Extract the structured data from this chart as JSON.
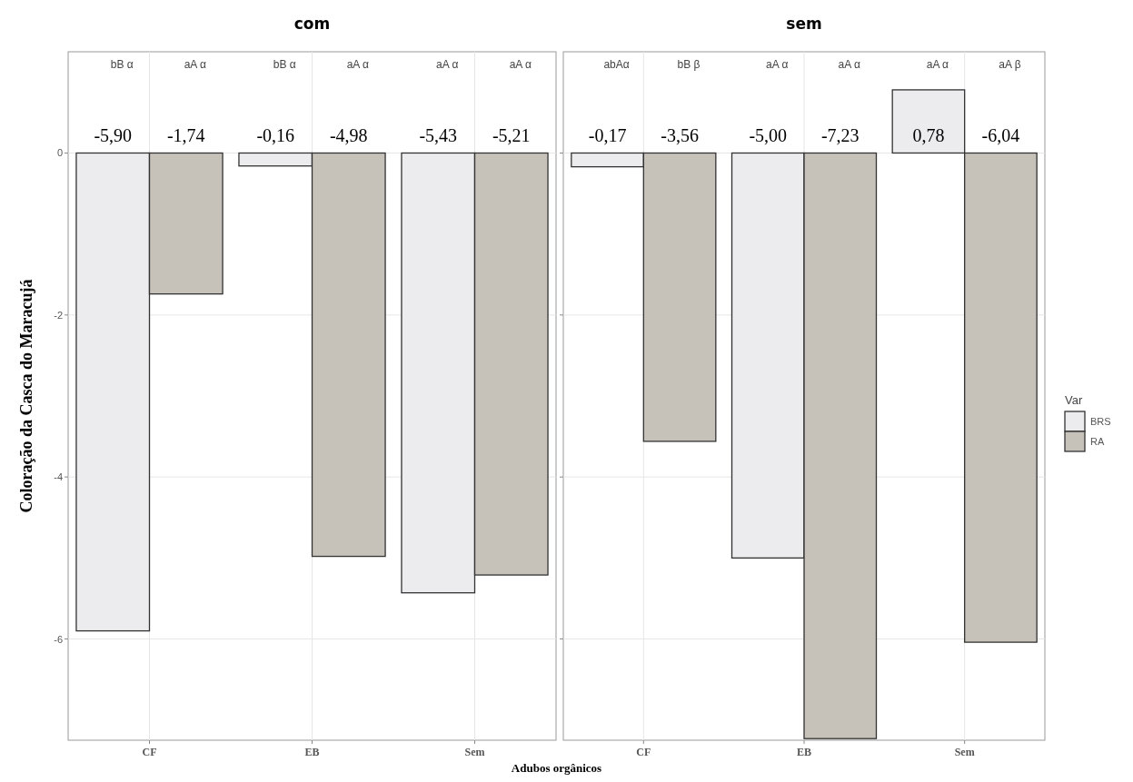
{
  "chart_data": [
    {
      "type": "bar",
      "title": "com",
      "ylabel": "Coloração da Casca do Maracujá",
      "xlabel": "Adubos orgânicos",
      "categories": [
        "CF",
        "EB",
        "Sem"
      ],
      "ylim": [
        -7.25,
        1.25
      ],
      "yticks": [
        0,
        -2,
        -4,
        -6
      ],
      "grid": true,
      "series": [
        {
          "color": "#ececee",
          "values": [
            -5.9,
            -0.16,
            -5.43
          ],
          "value_labels": [
            "-5,90",
            "-0,16",
            "-5,43"
          ]
        },
        {
          "color": "#c6c1b9",
          "values": [
            -1.74,
            -4.98,
            -5.21
          ],
          "value_labels": [
            "-1,74",
            "-4,98",
            "-5,21"
          ]
        }
      ],
      "annotations": [
        "bB α",
        "aA α",
        "bB α",
        "aA α",
        "aA α",
        "aA α"
      ]
    },
    {
      "type": "bar",
      "title": "sem",
      "categories": [
        "CF",
        "EB",
        "Sem"
      ],
      "ylim": [
        -7.25,
        1.25
      ],
      "yticks": [
        0,
        -2,
        -4,
        -6
      ],
      "grid": true,
      "tick_labels": "x",
      "legend": "right",
      "legend_title": "Var",
      "series": [
        {
          "name": "BRS",
          "color": "#ececee",
          "values": [
            -0.17,
            -5.0,
            0.78
          ],
          "value_labels": [
            "-0,17",
            "-5,00",
            "0,78"
          ]
        },
        {
          "name": "RA",
          "color": "#c6c1b9",
          "values": [
            -3.56,
            -7.23,
            -6.04
          ],
          "value_labels": [
            "-3,56",
            "-7,23",
            "-6,04"
          ]
        }
      ],
      "annotations": [
        "abAα",
        "bB β",
        "aA α",
        "aA α",
        "aA α",
        "aA β"
      ]
    }
  ]
}
